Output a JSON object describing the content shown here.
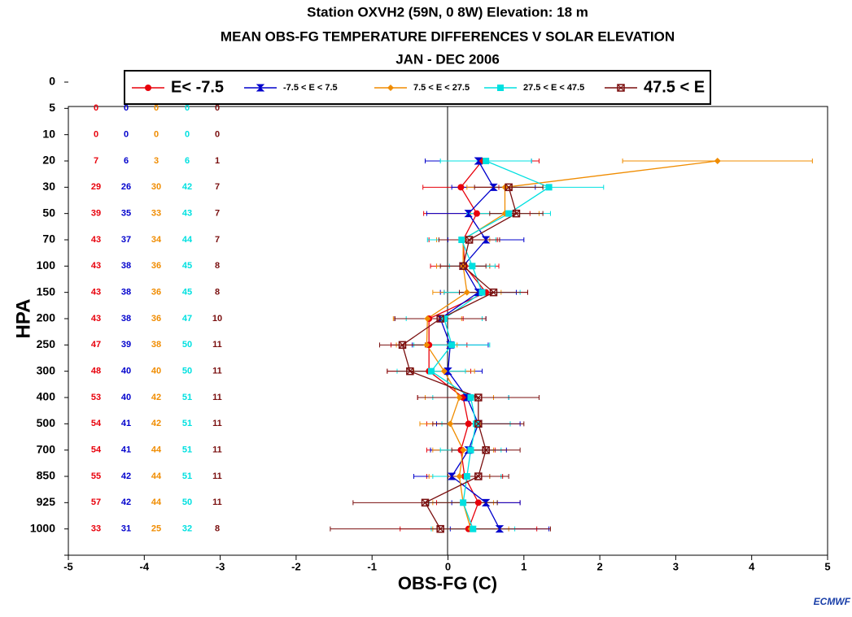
{
  "chart_data": {
    "type": "line",
    "title": "Station OXVH2    (59N, 0 8W) Elevation:   18 m",
    "subtitle": "MEAN OBS-FG TEMPERATURE DIFFERENCES V SOLAR ELEVATION",
    "period": "JAN - DEC 2006",
    "x_label": "OBS-FG (C)",
    "y_label": "HPA",
    "logo": "ECMWF",
    "categories": [
      "0",
      "5",
      "10",
      "20",
      "30",
      "50",
      "70",
      "100",
      "150",
      "200",
      "250",
      "300",
      "400",
      "500",
      "700",
      "850",
      "925",
      "1000",
      null
    ],
    "xlim": [
      -5,
      5
    ],
    "xticks": [
      -5,
      -4,
      -3,
      -2,
      -1,
      0,
      1,
      2,
      3,
      4,
      5
    ],
    "series": [
      {
        "name": "E< -7.5",
        "color": "#e8000b",
        "marker": "circle",
        "values": [
          null,
          null,
          null,
          0.45,
          0.17,
          0.38,
          0.2,
          0.22,
          0.5,
          -0.25,
          -0.25,
          -0.25,
          0.2,
          0.27,
          0.17,
          0.22,
          0.4,
          0.27,
          null
        ],
        "errors": [
          null,
          null,
          null,
          0.75,
          0.5,
          0.7,
          0.45,
          0.45,
          0.55,
          0.45,
          0.5,
          0.55,
          0.6,
          0.55,
          0.45,
          0.5,
          0.55,
          0.9,
          null
        ],
        "counts": [
          null,
          0,
          0,
          7,
          29,
          39,
          43,
          43,
          43,
          43,
          47,
          48,
          53,
          54,
          54,
          55,
          57,
          33,
          null
        ]
      },
      {
        "name": "-7.5 < E < 7.5",
        "color": "#0000cc",
        "marker": "hourglass",
        "values": [
          null,
          null,
          null,
          0.4,
          0.6,
          0.27,
          0.5,
          0.2,
          0.4,
          -0.1,
          0.03,
          0,
          0.25,
          0.4,
          0.27,
          0.05,
          0.5,
          0.68,
          null
        ],
        "errors": [
          null,
          null,
          null,
          0.7,
          0.55,
          0.55,
          0.5,
          0.35,
          0.5,
          0.6,
          0.5,
          0.45,
          0.55,
          0.55,
          0.5,
          0.5,
          0.45,
          0.65,
          null
        ],
        "counts": [
          null,
          0,
          0,
          6,
          26,
          35,
          37,
          38,
          38,
          38,
          39,
          40,
          40,
          41,
          41,
          42,
          42,
          31,
          null
        ]
      },
      {
        "name": "7.5 < E < 27.5",
        "color": "#f08c00",
        "marker": "diamond",
        "values": [
          null,
          null,
          null,
          3.55,
          0.75,
          0.75,
          0.2,
          0.2,
          0.25,
          -0.27,
          -0.28,
          -0.05,
          0.15,
          0.03,
          0.2,
          0.15,
          0.2,
          0.3,
          null
        ],
        "errors": [
          null,
          null,
          null,
          1.25,
          0.5,
          0.45,
          0.35,
          0.35,
          0.45,
          0.45,
          0.4,
          0.4,
          0.45,
          0.4,
          0.4,
          0.4,
          0.4,
          0.5,
          null
        ],
        "counts": [
          null,
          0,
          0,
          3,
          30,
          33,
          34,
          36,
          36,
          36,
          38,
          40,
          42,
          42,
          44,
          44,
          44,
          25,
          null
        ]
      },
      {
        "name": "27.5 < E < 47.5",
        "color": "#00e0e0",
        "marker": "square",
        "values": [
          null,
          null,
          null,
          0.5,
          1.33,
          0.8,
          0.18,
          0.32,
          0.45,
          -0.05,
          0.05,
          -0.22,
          0.3,
          0.37,
          0.3,
          0.25,
          0.2,
          0.33,
          null
        ],
        "errors": [
          null,
          null,
          null,
          0.6,
          0.72,
          0.55,
          0.45,
          0.3,
          0.5,
          0.5,
          0.5,
          0.45,
          0.5,
          0.45,
          0.4,
          0.45,
          0.45,
          0.55,
          null
        ],
        "counts": [
          null,
          0,
          0,
          6,
          42,
          43,
          44,
          45,
          45,
          47,
          50,
          50,
          51,
          51,
          51,
          51,
          50,
          32,
          null
        ]
      },
      {
        "name": "47.5 < E",
        "color": "#7a0f0f",
        "marker": "xsquare",
        "values": [
          null,
          null,
          null,
          null,
          0.8,
          0.9,
          0.28,
          0.2,
          0.6,
          -0.1,
          -0.6,
          -0.5,
          0.4,
          0.4,
          0.5,
          0.4,
          -0.3,
          -0.1,
          null
        ],
        "errors": [
          null,
          null,
          null,
          null,
          0.45,
          0.35,
          0.4,
          0.3,
          0.45,
          0.6,
          0.3,
          0.3,
          0.8,
          0.6,
          0.45,
          0.4,
          0.95,
          1.45,
          null
        ],
        "counts": [
          null,
          0,
          0,
          1,
          7,
          7,
          7,
          8,
          8,
          10,
          11,
          11,
          11,
          11,
          11,
          11,
          11,
          8,
          null
        ]
      }
    ]
  }
}
